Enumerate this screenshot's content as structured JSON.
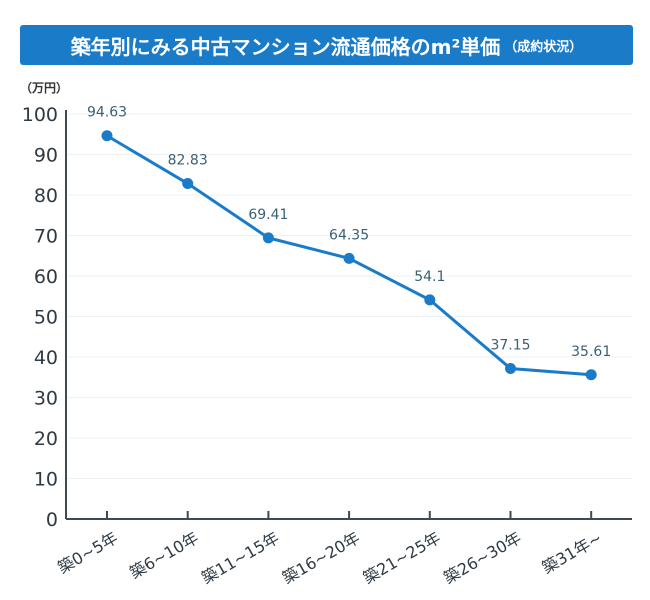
{
  "title": "築年別にみる中古マンション流通価格のm²単価",
  "subtitle": "（成約状況）",
  "chart_data": {
    "type": "line",
    "ylabel": "（万円）",
    "ylim": [
      0,
      100
    ],
    "yticks": [
      0,
      10,
      20,
      30,
      40,
      50,
      60,
      70,
      80,
      90,
      100
    ],
    "grid": true,
    "categories": [
      "築0~5年",
      "築6~10年",
      "築11~15年",
      "築16~20年",
      "築21~25年",
      "築26~30年",
      "築31年~"
    ],
    "values": [
      94.63,
      82.83,
      69.41,
      64.35,
      54.1,
      37.15,
      35.61
    ],
    "data_labels": [
      "94.63",
      "82.83",
      "69.41",
      "64.35",
      "54.1",
      "37.15",
      "35.61"
    ],
    "color": "#1a7bc9"
  }
}
